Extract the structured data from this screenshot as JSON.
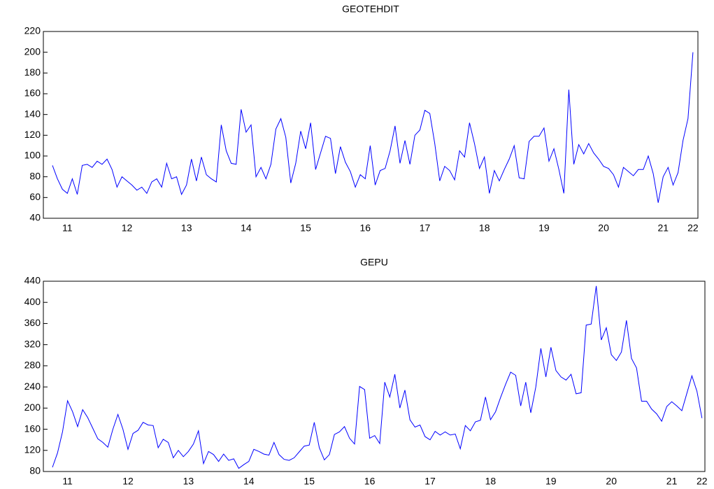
{
  "chart_data": [
    {
      "type": "line",
      "title": "GEOTEHDIT",
      "color": "#0000ff",
      "categories": [
        null,
        null,
        null,
        "11",
        null,
        null,
        null,
        null,
        null,
        null,
        null,
        null,
        null,
        null,
        null,
        "12",
        null,
        null,
        null,
        null,
        null,
        null,
        null,
        null,
        null,
        null,
        null,
        "13",
        null,
        null,
        null,
        null,
        null,
        null,
        null,
        null,
        null,
        null,
        null,
        "14",
        null,
        null,
        null,
        null,
        null,
        null,
        null,
        null,
        null,
        null,
        null,
        "15",
        null,
        null,
        null,
        null,
        null,
        null,
        null,
        null,
        null,
        null,
        null,
        "16",
        null,
        null,
        null,
        null,
        null,
        null,
        null,
        null,
        null,
        null,
        null,
        "17",
        null,
        null,
        null,
        null,
        null,
        null,
        null,
        null,
        null,
        null,
        null,
        "18",
        null,
        null,
        null,
        null,
        null,
        null,
        null,
        null,
        null,
        null,
        null,
        "19",
        null,
        null,
        null,
        null,
        null,
        null,
        null,
        null,
        null,
        null,
        null,
        "20",
        null,
        null,
        null,
        null,
        null,
        null,
        null,
        null,
        null,
        null,
        null,
        "21",
        null,
        null,
        null,
        null,
        null,
        "22"
      ],
      "values": [
        91,
        78,
        68,
        64,
        78,
        63,
        91,
        92,
        89,
        95,
        92,
        97,
        87,
        70,
        80,
        76,
        72,
        67,
        70,
        64,
        75,
        78,
        70,
        93,
        78,
        80,
        63,
        72,
        97,
        76,
        99,
        82,
        78,
        75,
        130,
        105,
        93,
        92,
        145,
        123,
        130,
        80,
        89,
        78,
        92,
        126,
        136,
        118,
        74,
        93,
        124,
        107,
        132,
        87,
        103,
        119,
        117,
        83,
        109,
        94,
        85,
        70,
        82,
        78,
        110,
        72,
        86,
        88,
        105,
        129,
        93,
        115,
        92,
        120,
        125,
        144,
        141,
        112,
        76,
        90,
        86,
        77,
        105,
        99,
        132,
        112,
        88,
        99,
        64,
        86,
        76,
        87,
        97,
        110,
        79,
        78,
        114,
        119,
        119,
        127,
        95,
        107,
        87,
        64,
        164,
        92,
        111,
        102,
        112,
        103,
        97,
        90,
        88,
        82,
        70,
        89,
        85,
        81,
        87,
        87,
        100,
        83,
        55,
        80,
        89,
        72,
        84,
        115,
        136,
        200
      ],
      "ylim": [
        40,
        220
      ],
      "yticks": [
        40,
        60,
        80,
        100,
        120,
        140,
        160,
        180,
        200,
        220
      ]
    },
    {
      "type": "line",
      "title": "GEPU",
      "color": "#0000ff",
      "categories": [
        null,
        null,
        null,
        "11",
        null,
        null,
        null,
        null,
        null,
        null,
        null,
        null,
        null,
        null,
        null,
        "12",
        null,
        null,
        null,
        null,
        null,
        null,
        null,
        null,
        null,
        null,
        null,
        "13",
        null,
        null,
        null,
        null,
        null,
        null,
        null,
        null,
        null,
        null,
        null,
        "14",
        null,
        null,
        null,
        null,
        null,
        null,
        null,
        null,
        null,
        null,
        null,
        "15",
        null,
        null,
        null,
        null,
        null,
        null,
        null,
        null,
        null,
        null,
        null,
        "16",
        null,
        null,
        null,
        null,
        null,
        null,
        null,
        null,
        null,
        null,
        null,
        "17",
        null,
        null,
        null,
        null,
        null,
        null,
        null,
        null,
        null,
        null,
        null,
        "18",
        null,
        null,
        null,
        null,
        null,
        null,
        null,
        null,
        null,
        null,
        null,
        "19",
        null,
        null,
        null,
        null,
        null,
        null,
        null,
        null,
        null,
        null,
        null,
        "20",
        null,
        null,
        null,
        null,
        null,
        null,
        null,
        null,
        null,
        null,
        null,
        "21",
        null,
        null,
        null,
        null,
        null,
        "22"
      ],
      "values": [
        88,
        115,
        155,
        214,
        193,
        165,
        197,
        182,
        162,
        142,
        135,
        126,
        160,
        188,
        160,
        122,
        152,
        158,
        173,
        168,
        167,
        125,
        141,
        135,
        106,
        120,
        108,
        118,
        132,
        157,
        95,
        118,
        112,
        99,
        113,
        101,
        104,
        86,
        93,
        99,
        122,
        118,
        113,
        111,
        135,
        112,
        103,
        101,
        106,
        117,
        128,
        130,
        173,
        125,
        102,
        112,
        150,
        155,
        165,
        143,
        132,
        241,
        235,
        143,
        148,
        133,
        249,
        221,
        264,
        200,
        234,
        178,
        164,
        168,
        146,
        140,
        156,
        149,
        155,
        149,
        151,
        123,
        167,
        157,
        174,
        177,
        221,
        178,
        193,
        220,
        245,
        268,
        262,
        204,
        249,
        191,
        240,
        313,
        259,
        315,
        271,
        259,
        253,
        264,
        227,
        229,
        357,
        359,
        431,
        329,
        352,
        301,
        290,
        306,
        366,
        294,
        276,
        213,
        213,
        198,
        189,
        175,
        203,
        212,
        204,
        195,
        228,
        261,
        232,
        181
      ],
      "ylim": [
        80,
        440
      ],
      "yticks": [
        80,
        120,
        160,
        200,
        240,
        280,
        320,
        360,
        400,
        440
      ]
    }
  ]
}
